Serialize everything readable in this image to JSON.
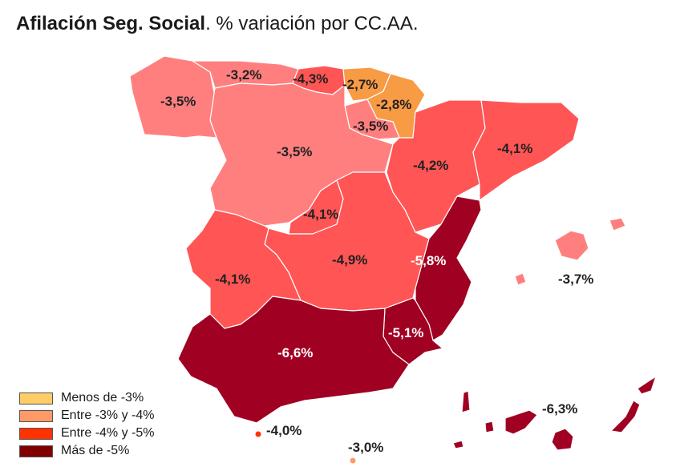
{
  "title": {
    "bold": "Afilación Seg. Social",
    "rest": ". % variación por CC.AA."
  },
  "legend": [
    {
      "label": "Menos de -3%",
      "color": "#ffcc66"
    },
    {
      "label": "Entre -3% y -4%",
      "color": "#ff9966"
    },
    {
      "label": "Entre -4% y -5%",
      "color": "#ff3300"
    },
    {
      "label": "Más de -5%",
      "color": "#800000"
    }
  ],
  "regions": [
    {
      "name": "galicia",
      "value": "-3,5%"
    },
    {
      "name": "asturias",
      "value": "-3,2%"
    },
    {
      "name": "cantabria",
      "value": "-4,3%"
    },
    {
      "name": "pais-vasco",
      "value": "-2,7%"
    },
    {
      "name": "navarra",
      "value": "-2,8%"
    },
    {
      "name": "la-rioja",
      "value": "-3,5%"
    },
    {
      "name": "castilla-leon",
      "value": "-3,5%"
    },
    {
      "name": "aragon",
      "value": "-4,2%"
    },
    {
      "name": "cataluna",
      "value": "-4,1%"
    },
    {
      "name": "madrid",
      "value": "-4,1%"
    },
    {
      "name": "castilla-la-mancha",
      "value": "-4,9%"
    },
    {
      "name": "extremadura",
      "value": "-4,1%"
    },
    {
      "name": "comunidad-valenciana",
      "value": "-5,8%"
    },
    {
      "name": "baleares",
      "value": "-3,7%"
    },
    {
      "name": "murcia",
      "value": "-5,1%"
    },
    {
      "name": "andalucia",
      "value": "-6,6%"
    },
    {
      "name": "ceuta",
      "value": "-4,0%"
    },
    {
      "name": "melilla",
      "value": "-3,0%"
    },
    {
      "name": "canarias",
      "value": "-6,3%"
    }
  ]
}
